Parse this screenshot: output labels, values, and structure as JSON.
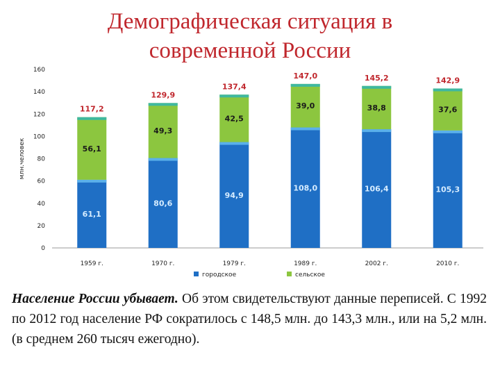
{
  "slide": {
    "title_line1": "Демографическая ситуация в",
    "title_line2": "современной России",
    "paragraph_lead": "Население России убывает.",
    "paragraph_body": " Об этом свидетельствуют данные переписей. С 1992 по 2012 год население РФ сократилось с 148,5 млн. до 143,3 млн., или на 5,2 млн. (в среднем 260 тысяч ежегодно)."
  },
  "colors": {
    "urban": "#1f6fc5",
    "urban_top": "#5ab0ea",
    "rural": "#8cc63f",
    "rural_top": "#3fb8a0",
    "total_label": "#c0272d",
    "urban_label": "#d6ecff",
    "rural_label": "#1a1a1a",
    "axis_text": "#222222",
    "grid": "#d0d0d0"
  },
  "chart_data": {
    "type": "bar",
    "stacked": true,
    "categories": [
      "1959 г.",
      "1970 г.",
      "1979 г.",
      "1989 г.",
      "2002 г.",
      "2010 г."
    ],
    "series": [
      {
        "name": "городское",
        "values": [
          61.1,
          80.6,
          94.9,
          108.0,
          106.4,
          105.3
        ],
        "labels": [
          "61,1",
          "80,6",
          "94,9",
          "108,0",
          "106,4",
          "105,3"
        ]
      },
      {
        "name": "сельское",
        "values": [
          56.1,
          49.3,
          42.5,
          39.0,
          38.8,
          37.6
        ],
        "labels": [
          "56,1",
          "49,3",
          "42,5",
          "39,0",
          "38,8",
          "37,6"
        ]
      }
    ],
    "totals": [
      "117,2",
      "129,9",
      "137,4",
      "147,0",
      "145,2",
      "142,9"
    ],
    "ylabel": "млн.человек",
    "ylim": [
      0,
      160
    ],
    "yticks": [
      0,
      20,
      40,
      60,
      80,
      100,
      120,
      140,
      160
    ],
    "grid": false,
    "legend_position": "bottom"
  }
}
